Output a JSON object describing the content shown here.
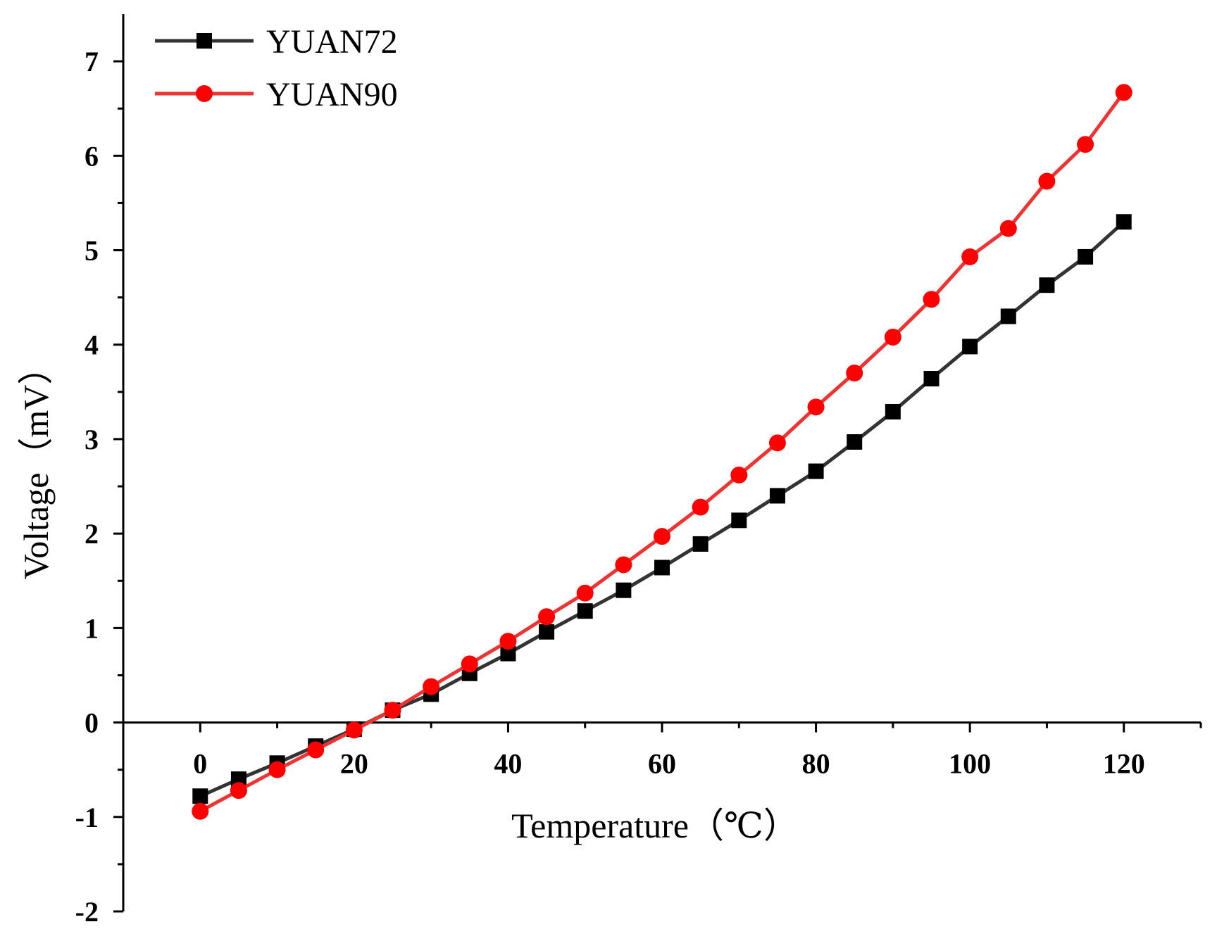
{
  "chart_data": {
    "type": "line",
    "title": "",
    "xlabel": "Temperature（℃）",
    "ylabel": "Voltage（mV）",
    "xlim": [
      -10,
      130
    ],
    "ylim": [
      -2,
      7.5
    ],
    "x_ticks": [
      0,
      20,
      40,
      60,
      80,
      100,
      120
    ],
    "x_tick_labels": [
      "0",
      "20",
      "40",
      "60",
      "80",
      "100",
      "120"
    ],
    "y_ticks": [
      -2,
      -1,
      0,
      1,
      2,
      3,
      4,
      5,
      6,
      7
    ],
    "y_tick_labels": [
      "-2",
      "-1",
      "0",
      "1",
      "2",
      "3",
      "4",
      "5",
      "6",
      "7"
    ],
    "grid": false,
    "legend_position": "top-left",
    "x": [
      0,
      5,
      10,
      15,
      20,
      25,
      30,
      35,
      40,
      45,
      50,
      55,
      60,
      65,
      70,
      75,
      80,
      85,
      90,
      95,
      100,
      105,
      110,
      115,
      120
    ],
    "series": [
      {
        "name": "YUAN72",
        "color": "#000000",
        "line_color": "#333333",
        "marker": "square",
        "values": [
          -0.78,
          -0.6,
          -0.43,
          -0.25,
          -0.07,
          0.13,
          0.3,
          0.52,
          0.73,
          0.96,
          1.18,
          1.4,
          1.64,
          1.89,
          2.14,
          2.4,
          2.66,
          2.97,
          3.29,
          3.64,
          3.98,
          4.3,
          4.63,
          4.93,
          5.3
        ]
      },
      {
        "name": "YUAN90",
        "color": "#ff0000",
        "line_color": "#ee3333",
        "marker": "circle",
        "values": [
          -0.94,
          -0.72,
          -0.5,
          -0.29,
          -0.08,
          0.13,
          0.38,
          0.62,
          0.86,
          1.12,
          1.37,
          1.67,
          1.97,
          2.28,
          2.62,
          2.96,
          3.34,
          3.7,
          4.08,
          4.48,
          4.93,
          5.23,
          5.73,
          6.12,
          6.67
        ]
      }
    ]
  }
}
